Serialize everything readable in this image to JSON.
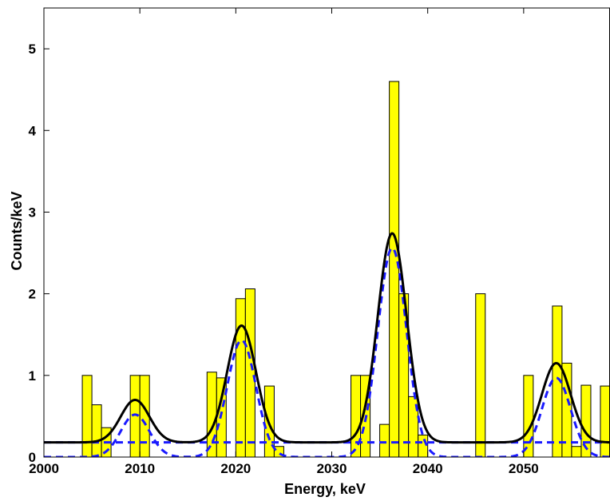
{
  "chart_data": {
    "type": "bar",
    "title": "",
    "xlabel": "Energy, keV",
    "ylabel": "Counts/keV",
    "xlim": [
      2000,
      2059
    ],
    "ylim": [
      0,
      5.5
    ],
    "xticks": [
      2000,
      2010,
      2020,
      2030,
      2040,
      2050
    ],
    "yticks": [
      0,
      1,
      2,
      3,
      4,
      5
    ],
    "grid": false,
    "histogram": {
      "name": "",
      "bin_width": 1,
      "bins": [
        {
          "x": 2004.5,
          "value": 1.0
        },
        {
          "x": 2005.5,
          "value": 0.64
        },
        {
          "x": 2006.5,
          "value": 0.36
        },
        {
          "x": 2009.5,
          "value": 1.0
        },
        {
          "x": 2010.5,
          "value": 1.0
        },
        {
          "x": 2017.5,
          "value": 1.04
        },
        {
          "x": 2018.5,
          "value": 0.97
        },
        {
          "x": 2020.5,
          "value": 1.94
        },
        {
          "x": 2021.5,
          "value": 2.06
        },
        {
          "x": 2023.5,
          "value": 0.87
        },
        {
          "x": 2024.5,
          "value": 0.13
        },
        {
          "x": 2032.5,
          "value": 1.0
        },
        {
          "x": 2033.5,
          "value": 1.0
        },
        {
          "x": 2035.5,
          "value": 0.4
        },
        {
          "x": 2036.5,
          "value": 4.6
        },
        {
          "x": 2037.5,
          "value": 2.0
        },
        {
          "x": 2038.5,
          "value": 0.74
        },
        {
          "x": 2039.5,
          "value": 0.27
        },
        {
          "x": 2045.5,
          "value": 2.0
        },
        {
          "x": 2050.5,
          "value": 1.0
        },
        {
          "x": 2053.5,
          "value": 1.85
        },
        {
          "x": 2054.5,
          "value": 1.15
        },
        {
          "x": 2055.5,
          "value": 0.13
        },
        {
          "x": 2056.5,
          "value": 0.88
        },
        {
          "x": 2058.5,
          "value": 0.87
        }
      ]
    },
    "fit_model": {
      "background": 0.18,
      "peaks": [
        {
          "center": 2009.5,
          "amplitude": 0.52,
          "sigma": 1.5
        },
        {
          "center": 2020.6,
          "amplitude": 1.43,
          "sigma": 1.5
        },
        {
          "center": 2036.3,
          "amplitude": 2.56,
          "sigma": 1.5
        },
        {
          "center": 2053.4,
          "amplitude": 0.97,
          "sigma": 1.5
        }
      ]
    },
    "series": [
      {
        "name": "",
        "style": "solid",
        "color": "#000000",
        "kind": "total-fit"
      },
      {
        "name": "",
        "style": "dashed",
        "color": "#1a1aff",
        "kind": "background-component"
      },
      {
        "name": "",
        "style": "dashed",
        "color": "#1a1aff",
        "kind": "peak-components"
      }
    ],
    "colors": {
      "bars": "#ffff00",
      "bar_edge": "#000000",
      "fit": "#000000",
      "components": "#1a1aff"
    }
  }
}
